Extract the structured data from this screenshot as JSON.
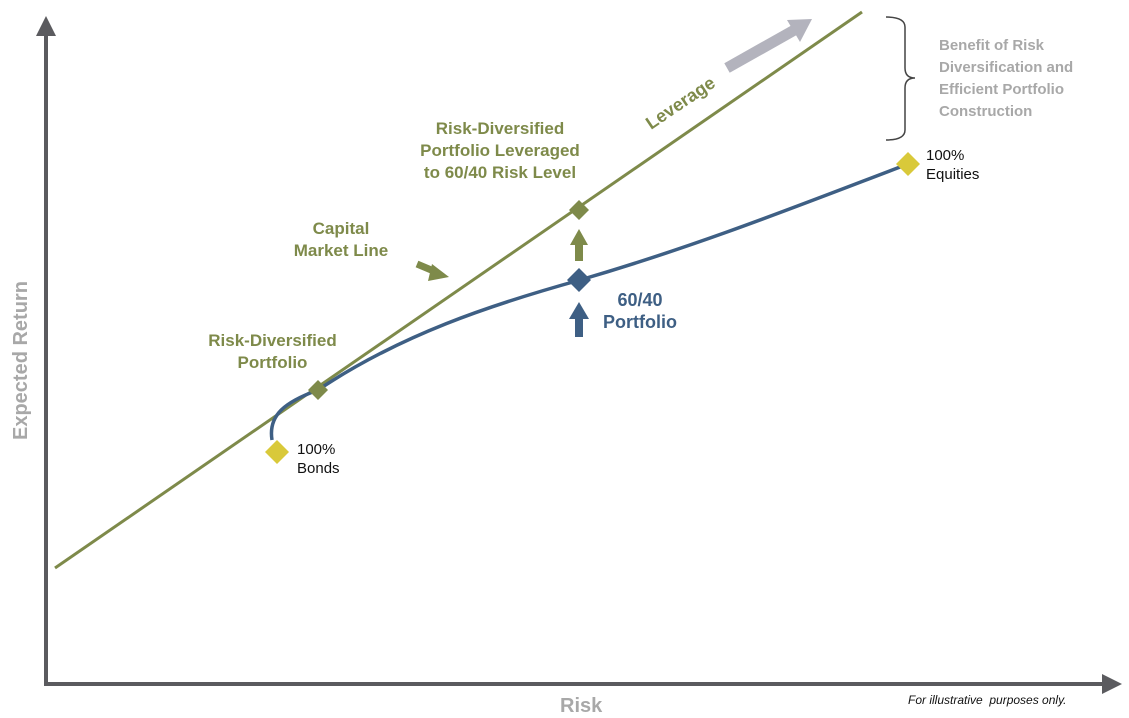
{
  "axes": {
    "y_label": "Expected Return",
    "x_label": "Risk"
  },
  "labels": {
    "capital_market_line": "Capital\nMarket Line",
    "risk_diversified_portfolio": "Risk-Diversified\nPortfolio",
    "leveraged_portfolio": "Risk-Diversified\nPortfolio Leveraged\nto 60/40 Risk Level",
    "portfolio_6040": "60/40\nPortfolio",
    "bonds": "100%\nBonds",
    "equities": "100%\nEquities",
    "leverage": "Leverage",
    "benefit": "Benefit of Risk\nDiversification and\nEfficient Portfolio\nConstruction",
    "disclaimer": "For illustrative  purposes only."
  },
  "colors": {
    "axis": "#5B5B5F",
    "capital_market_line": "#7E8A4A",
    "efficient_frontier": "#3E5F84",
    "endpoint_marker": "#D9C93A",
    "leverage_arrow": "#B3B3BD",
    "annotation_gray": "#A8A8A8"
  }
}
